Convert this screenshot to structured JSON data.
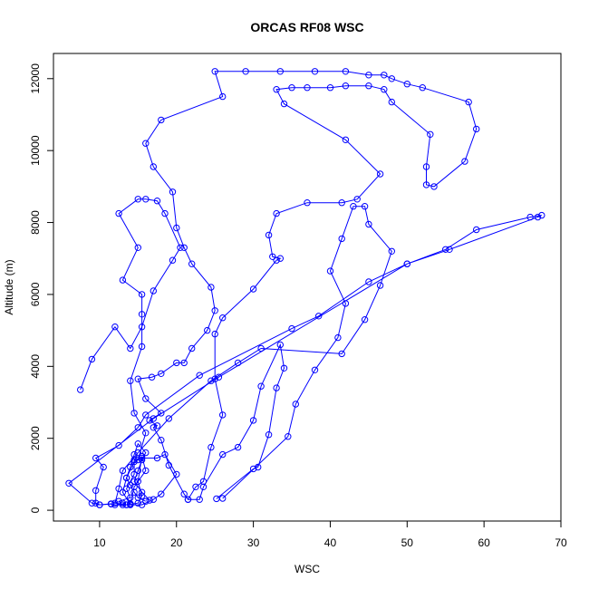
{
  "chart_data": {
    "type": "line",
    "title": "ORCAS RF08 WSC",
    "xlabel": "WSC",
    "ylabel": "Altitude (m)",
    "xlim": [
      4,
      70
    ],
    "ylim": [
      -300,
      12700
    ],
    "x_ticks": [
      10,
      20,
      30,
      40,
      50,
      60,
      70
    ],
    "y_ticks": [
      0,
      2000,
      4000,
      6000,
      8000,
      10000,
      12000
    ],
    "grid": false,
    "legend": "none",
    "marker": "open-circle",
    "color": "#0000ff",
    "series": [
      {
        "values": [
          [
            25.2,
            320
          ],
          [
            30.0,
            1150
          ],
          [
            30.6,
            1200
          ],
          [
            32.0,
            2100
          ],
          [
            33.0,
            3400
          ],
          [
            34.0,
            3950
          ],
          [
            33.5,
            4600
          ],
          [
            31.0,
            3450
          ],
          [
            30.0,
            2500
          ],
          [
            28.0,
            1750
          ],
          [
            26.0,
            1550
          ],
          [
            23.5,
            650
          ],
          [
            23.0,
            300
          ],
          [
            21.5,
            300
          ],
          [
            21.0,
            450
          ],
          [
            19.0,
            1250
          ],
          [
            18.0,
            1950
          ],
          [
            17.0,
            2300
          ],
          [
            17.5,
            2350
          ],
          [
            16.5,
            2500
          ],
          [
            18.0,
            2700
          ],
          [
            16.0,
            3100
          ],
          [
            15.0,
            3650
          ],
          [
            16.8,
            3700
          ],
          [
            18.0,
            3800
          ],
          [
            20.0,
            4100
          ],
          [
            21.0,
            4100
          ],
          [
            22.0,
            4500
          ],
          [
            24.0,
            5000
          ],
          [
            25.0,
            5550
          ],
          [
            24.5,
            6200
          ],
          [
            22.0,
            6850
          ],
          [
            21.0,
            7300
          ],
          [
            20.0,
            7850
          ],
          [
            19.5,
            8850
          ],
          [
            17.0,
            9550
          ],
          [
            16.0,
            10200
          ],
          [
            18.0,
            10850
          ],
          [
            26.0,
            11500
          ],
          [
            25.0,
            12200
          ],
          [
            29.0,
            12200
          ],
          [
            33.5,
            12200
          ],
          [
            38.0,
            12200
          ],
          [
            42.0,
            12200
          ],
          [
            45.0,
            12100
          ],
          [
            47.0,
            12100
          ],
          [
            48.0,
            12000
          ],
          [
            50.0,
            11850
          ],
          [
            52.0,
            11750
          ],
          [
            58.0,
            11350
          ],
          [
            59.0,
            10600
          ],
          [
            57.5,
            9700
          ],
          [
            53.5,
            9000
          ],
          [
            52.5,
            9050
          ],
          [
            52.5,
            9550
          ],
          [
            53.0,
            10450
          ],
          [
            48.0,
            11350
          ],
          [
            47.0,
            11700
          ],
          [
            45.0,
            11800
          ],
          [
            42.0,
            11800
          ],
          [
            40.0,
            11750
          ],
          [
            37.0,
            11750
          ],
          [
            35.0,
            11750
          ],
          [
            33.0,
            11700
          ],
          [
            34.0,
            11300
          ],
          [
            42.0,
            10300
          ],
          [
            46.5,
            9350
          ],
          [
            43.5,
            8650
          ],
          [
            41.5,
            8550
          ],
          [
            37.0,
            8550
          ],
          [
            33.0,
            8250
          ],
          [
            32.0,
            7650
          ],
          [
            32.5,
            7050
          ],
          [
            33.5,
            7000
          ],
          [
            33.0,
            6950
          ],
          [
            30.0,
            6150
          ],
          [
            26.0,
            5350
          ],
          [
            25.0,
            4900
          ],
          [
            25.0,
            3650
          ],
          [
            26.0,
            2650
          ],
          [
            24.5,
            1750
          ],
          [
            23.5,
            800
          ],
          [
            22.5,
            650
          ],
          [
            21.5,
            300
          ]
        ]
      },
      {
        "values": [
          [
            26.0,
            330
          ],
          [
            34.5,
            2050
          ],
          [
            35.5,
            2950
          ],
          [
            38.0,
            3900
          ],
          [
            41.0,
            4800
          ],
          [
            42.0,
            5750
          ],
          [
            40.0,
            6650
          ],
          [
            41.5,
            7550
          ],
          [
            43.0,
            8450
          ],
          [
            44.5,
            8450
          ],
          [
            45.0,
            7950
          ],
          [
            48.0,
            7200
          ],
          [
            46.5,
            6250
          ],
          [
            44.5,
            5300
          ],
          [
            41.5,
            4350
          ],
          [
            31.0,
            4500
          ],
          [
            28.0,
            4100
          ],
          [
            24.5,
            3600
          ],
          [
            19.0,
            2550
          ],
          [
            15.0,
            1600
          ],
          [
            13.0,
            1100
          ],
          [
            12.5,
            600
          ],
          [
            12.0,
            200
          ],
          [
            13.5,
            150
          ],
          [
            15.0,
            200
          ],
          [
            15.5,
            400
          ],
          [
            15.0,
            800
          ],
          [
            15.5,
            1500
          ],
          [
            16.0,
            1100
          ],
          [
            14.5,
            650
          ],
          [
            14.0,
            180
          ],
          [
            13.5,
            150
          ],
          [
            13.0,
            200
          ]
        ]
      },
      {
        "values": [
          [
            14.0,
            160
          ],
          [
            13.0,
            500
          ],
          [
            13.5,
            900
          ],
          [
            14.5,
            1350
          ],
          [
            15.0,
            1400
          ],
          [
            16.0,
            2150
          ],
          [
            14.5,
            2700
          ],
          [
            14.0,
            3600
          ],
          [
            15.5,
            4550
          ],
          [
            15.5,
            5450
          ],
          [
            15.5,
            6000
          ],
          [
            13.0,
            6400
          ],
          [
            15.0,
            7300
          ],
          [
            12.5,
            8250
          ],
          [
            15.0,
            8650
          ],
          [
            16.0,
            8650
          ],
          [
            17.5,
            8600
          ],
          [
            18.5,
            8250
          ],
          [
            20.5,
            7300
          ],
          [
            19.5,
            6950
          ],
          [
            17.0,
            6100
          ],
          [
            15.5,
            5100
          ],
          [
            14.0,
            4500
          ],
          [
            12.0,
            5100
          ],
          [
            9.0,
            4200
          ],
          [
            7.5,
            3350
          ]
        ]
      },
      {
        "values": [
          [
            14.0,
            150
          ],
          [
            15.5,
            150
          ],
          [
            17.0,
            300
          ],
          [
            18.0,
            450
          ],
          [
            20.0,
            1000
          ],
          [
            18.5,
            1550
          ],
          [
            17.5,
            1450
          ],
          [
            15.5,
            1450
          ],
          [
            14.5,
            1400
          ],
          [
            14.5,
            1000
          ],
          [
            13.5,
            600
          ],
          [
            14.0,
            350
          ],
          [
            12.5,
            250
          ],
          [
            13.0,
            150
          ],
          [
            12.0,
            150
          ],
          [
            11.5,
            170
          ],
          [
            10.0,
            150
          ],
          [
            9.5,
            200
          ],
          [
            9.5,
            550
          ],
          [
            10.5,
            1200
          ],
          [
            9.5,
            1450
          ],
          [
            12.5,
            1800
          ],
          [
            15.0,
            2300
          ],
          [
            16.0,
            2650
          ],
          [
            23.0,
            3750
          ],
          [
            35.0,
            5050
          ],
          [
            38.5,
            5400
          ],
          [
            45.0,
            6350
          ],
          [
            50.0,
            6850
          ],
          [
            55.0,
            7250
          ],
          [
            59.0,
            7800
          ],
          [
            66.0,
            8150
          ],
          [
            67.5,
            8200
          ],
          [
            67.0,
            8150
          ],
          [
            55.5,
            7250
          ],
          [
            50.0,
            6850
          ],
          [
            25.5,
            3700
          ],
          [
            17.0,
            2550
          ],
          [
            6.0,
            750
          ],
          [
            9.0,
            200
          ],
          [
            10.0,
            150
          ],
          [
            11.5,
            180
          ]
        ]
      },
      {
        "values": [
          [
            16.5,
            280
          ],
          [
            15.5,
            500
          ],
          [
            14.5,
            800
          ],
          [
            15.0,
            1100
          ],
          [
            15.5,
            1400
          ],
          [
            16.0,
            1600
          ],
          [
            15.0,
            1850
          ],
          [
            14.5,
            1550
          ],
          [
            14.0,
            1200
          ],
          [
            13.5,
            900
          ],
          [
            14.0,
            700
          ],
          [
            14.5,
            500
          ],
          [
            15.0,
            350
          ],
          [
            16.0,
            250
          ]
        ]
      }
    ]
  }
}
